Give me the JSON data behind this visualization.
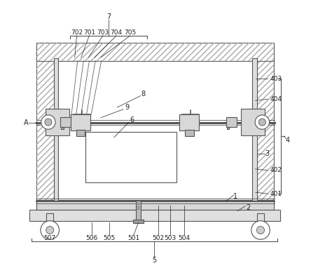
{
  "fig_width": 4.44,
  "fig_height": 3.92,
  "dpi": 100,
  "bg_color": "#ffffff",
  "line_color": "#555555"
}
